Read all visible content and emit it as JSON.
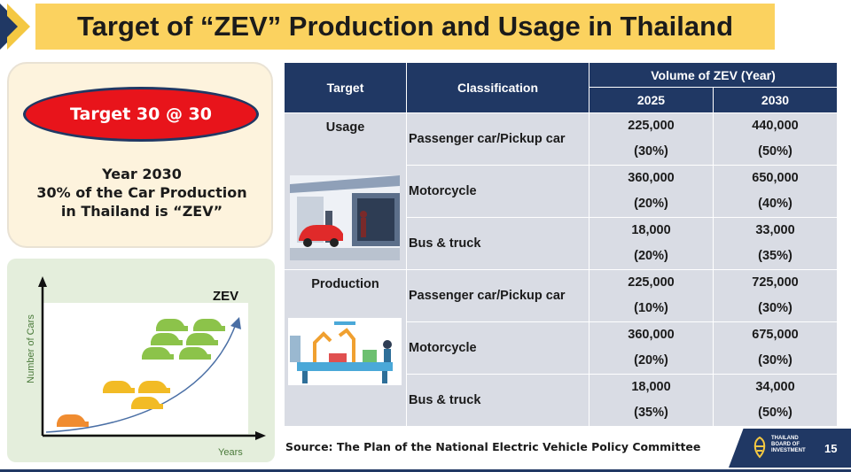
{
  "title": "Target of “ZEV” Production and Usage in Thailand",
  "target_panel": {
    "oval_text": "Target 30 @ 30",
    "desc_lines": [
      "Year 2030",
      "30% of the Car Production",
      "in Thailand is “ZEV”"
    ]
  },
  "chart": {
    "label": "ZEV",
    "y_axis": "Number of Cars",
    "x_axis": "Years"
  },
  "table": {
    "headers": {
      "target": "Target",
      "classification": "Classification",
      "volume": "Volume of ZEV (Year)",
      "year1": "2025",
      "year2": "2030"
    },
    "groups": [
      {
        "label": "Usage",
        "rows": [
          {
            "classification": "Passenger car/Pickup car",
            "v2025": "225,000",
            "p2025": "(30%)",
            "v2030": "440,000",
            "p2030": "(50%)"
          },
          {
            "classification": "Motorcycle",
            "v2025": "360,000",
            "p2025": "(20%)",
            "v2030": "650,000",
            "p2030": "(40%)"
          },
          {
            "classification": "Bus & truck",
            "v2025": "18,000",
            "p2025": "(20%)",
            "v2030": "33,000",
            "p2030": "(35%)"
          }
        ]
      },
      {
        "label": "Production",
        "rows": [
          {
            "classification": "Passenger car/Pickup car",
            "v2025": "225,000",
            "p2025": "(10%)",
            "v2030": "725,000",
            "p2030": "(30%)"
          },
          {
            "classification": "Motorcycle",
            "v2025": "360,000",
            "p2025": "(20%)",
            "v2030": "675,000",
            "p2030": "(30%)"
          },
          {
            "classification": "Bus & truck",
            "v2025": "18,000",
            "p2025": "(35%)",
            "v2030": "34,000",
            "p2030": "(50%)"
          }
        ]
      }
    ]
  },
  "footer": {
    "source": "Source: The Plan of the National Electric Vehicle Policy Committee",
    "logo_lines": [
      "THAILAND",
      "BOARD OF",
      "INVESTMENT"
    ],
    "page_number": "15"
  },
  "colors": {
    "navy": "#203864",
    "title_yellow": "#fbd25f",
    "oval_red": "#e8141b",
    "table_cell": "#d9dce4"
  }
}
